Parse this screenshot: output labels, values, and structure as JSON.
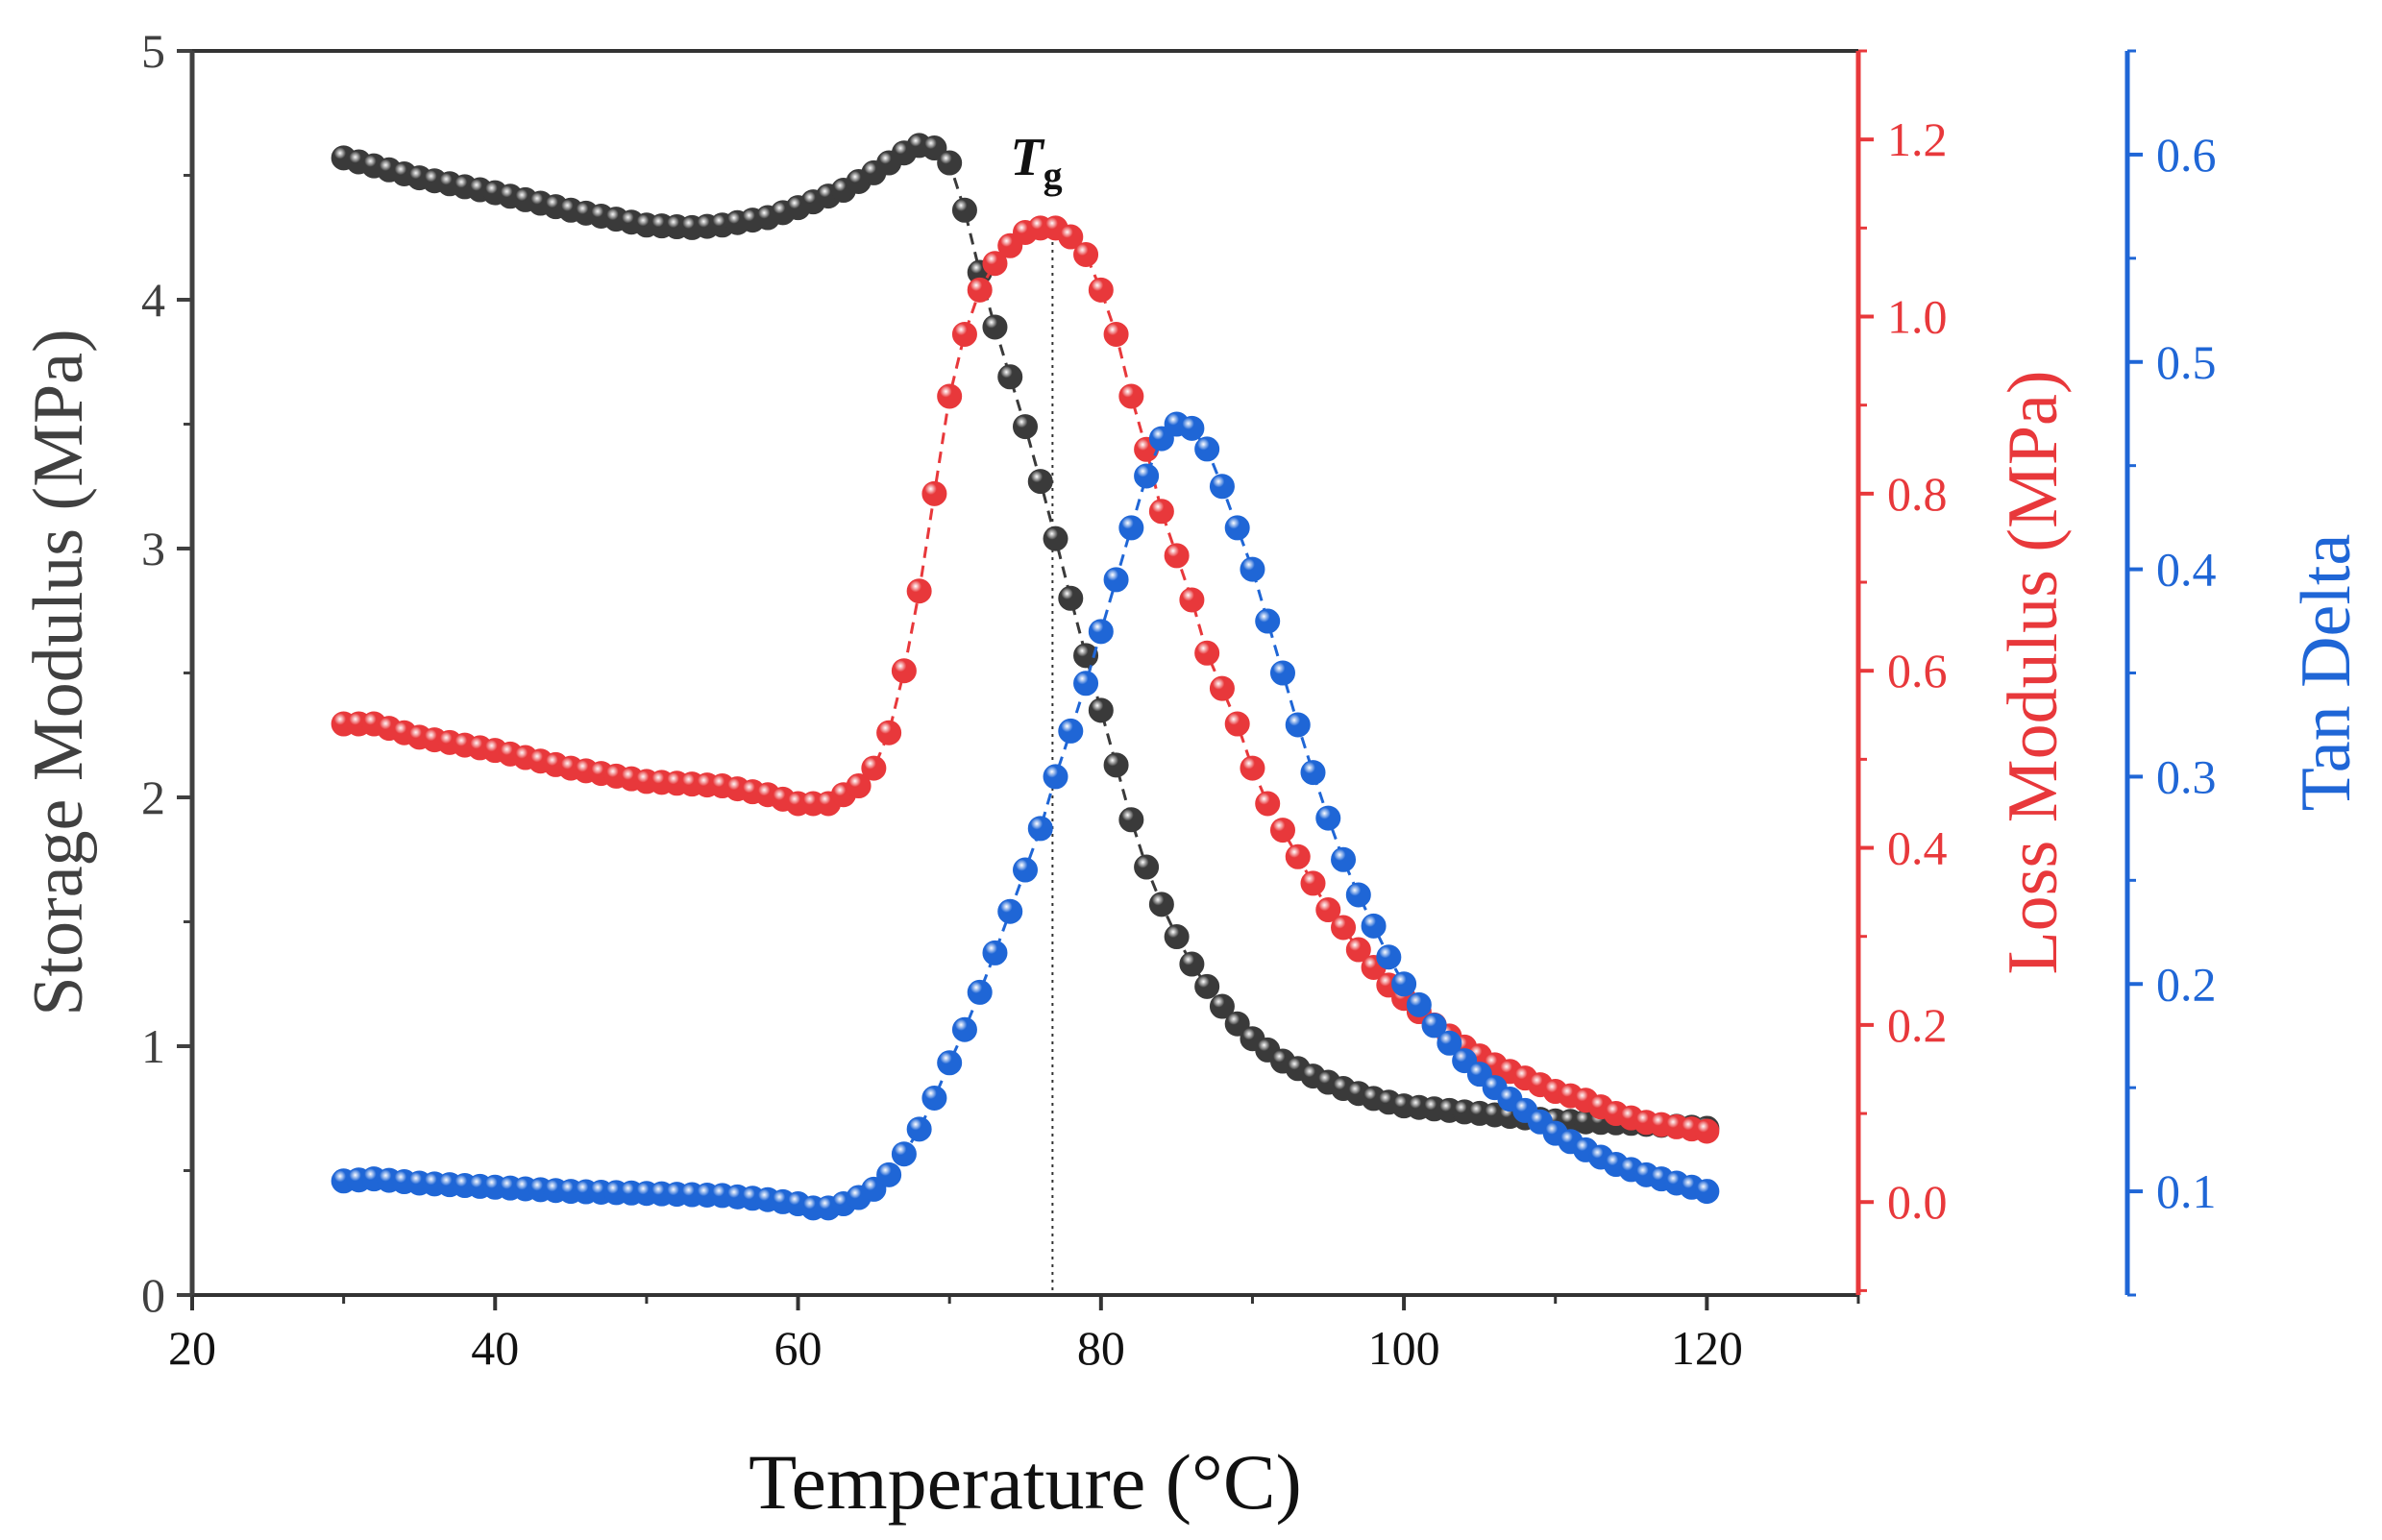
{
  "chart_data": {
    "type": "scatter",
    "xlabel": "Temperature (°C)",
    "x_axis": {
      "min": 20,
      "max": 130,
      "ticks": [
        20,
        40,
        60,
        80,
        100,
        120
      ]
    },
    "left_axis": {
      "label": "Storage Modulus (MPa)",
      "min": 0,
      "max": 5,
      "ticks": [
        0,
        1,
        2,
        3,
        4,
        5
      ],
      "color": "#404040"
    },
    "right_axis_1": {
      "label": "Loss Modulus (MPa)",
      "min": -0.105,
      "max": 1.3,
      "ticks": [
        "0.0",
        "0.2",
        "0.4",
        "0.6",
        "0.8",
        "1.0",
        "1.2"
      ],
      "color": "#e8383b"
    },
    "right_axis_2": {
      "label": "Tan Delta",
      "min": 0.05,
      "max": 0.65,
      "ticks": [
        "0.1",
        "0.2",
        "0.3",
        "0.4",
        "0.5",
        "0.6"
      ],
      "color": "#1f66d6"
    },
    "annotation": {
      "text": "T",
      "subscript": "g",
      "x": 76.8
    },
    "series": [
      {
        "axis": "left",
        "color": "#3a3a3a",
        "points": [
          [
            30,
            4.57
          ],
          [
            35,
            4.49
          ],
          [
            40,
            4.43
          ],
          [
            45,
            4.36
          ],
          [
            50,
            4.3
          ],
          [
            53,
            4.29
          ],
          [
            55,
            4.3
          ],
          [
            58,
            4.33
          ],
          [
            60,
            4.37
          ],
          [
            63,
            4.44
          ],
          [
            65,
            4.51
          ],
          [
            67,
            4.59
          ],
          [
            68,
            4.62
          ],
          [
            69,
            4.61
          ],
          [
            70,
            4.55
          ],
          [
            71,
            4.36
          ],
          [
            72,
            4.11
          ],
          [
            73,
            3.89
          ],
          [
            74,
            3.69
          ],
          [
            75,
            3.49
          ],
          [
            76,
            3.27
          ],
          [
            77,
            3.04
          ],
          [
            78,
            2.8
          ],
          [
            79,
            2.57
          ],
          [
            80,
            2.35
          ],
          [
            81,
            2.13
          ],
          [
            82,
            1.91
          ],
          [
            83,
            1.72
          ],
          [
            84,
            1.57
          ],
          [
            85,
            1.44
          ],
          [
            86,
            1.33
          ],
          [
            87,
            1.24
          ],
          [
            88,
            1.16
          ],
          [
            89,
            1.09
          ],
          [
            90,
            1.03
          ],
          [
            92,
            0.94
          ],
          [
            94,
            0.88
          ],
          [
            96,
            0.83
          ],
          [
            98,
            0.79
          ],
          [
            100,
            0.76
          ],
          [
            105,
            0.73
          ],
          [
            110,
            0.7
          ],
          [
            115,
            0.69
          ],
          [
            120,
            0.67
          ]
        ]
      },
      {
        "axis": "right1",
        "color": "#e8383b",
        "points": [
          [
            30,
            0.54
          ],
          [
            32,
            0.54
          ],
          [
            35,
            0.525
          ],
          [
            40,
            0.51
          ],
          [
            45,
            0.49
          ],
          [
            50,
            0.475
          ],
          [
            55,
            0.47
          ],
          [
            58,
            0.46
          ],
          [
            60,
            0.45
          ],
          [
            62,
            0.45
          ],
          [
            63,
            0.46
          ],
          [
            64,
            0.47
          ],
          [
            65,
            0.49
          ],
          [
            66,
            0.53
          ],
          [
            67,
            0.6
          ],
          [
            68,
            0.69
          ],
          [
            69,
            0.8
          ],
          [
            70,
            0.91
          ],
          [
            71,
            0.98
          ],
          [
            72,
            1.03
          ],
          [
            73,
            1.06
          ],
          [
            74,
            1.08
          ],
          [
            75,
            1.095
          ],
          [
            76,
            1.1
          ],
          [
            77,
            1.1
          ],
          [
            78,
            1.09
          ],
          [
            79,
            1.07
          ],
          [
            80,
            1.03
          ],
          [
            81,
            0.98
          ],
          [
            82,
            0.91
          ],
          [
            83,
            0.85
          ],
          [
            84,
            0.78
          ],
          [
            85,
            0.73
          ],
          [
            86,
            0.68
          ],
          [
            87,
            0.62
          ],
          [
            88,
            0.58
          ],
          [
            89,
            0.54
          ],
          [
            90,
            0.49
          ],
          [
            91,
            0.45
          ],
          [
            92,
            0.42
          ],
          [
            93,
            0.39
          ],
          [
            94,
            0.36
          ],
          [
            95,
            0.33
          ],
          [
            96,
            0.31
          ],
          [
            97,
            0.285
          ],
          [
            98,
            0.265
          ],
          [
            99,
            0.245
          ],
          [
            100,
            0.23
          ],
          [
            102,
            0.2
          ],
          [
            104,
            0.175
          ],
          [
            106,
            0.155
          ],
          [
            108,
            0.14
          ],
          [
            110,
            0.125
          ],
          [
            112,
            0.115
          ],
          [
            114,
            0.1
          ],
          [
            116,
            0.09
          ],
          [
            118,
            0.085
          ],
          [
            120,
            0.08
          ]
        ]
      },
      {
        "axis": "right2",
        "color": "#1f66d6",
        "points": [
          [
            30,
            0.105
          ],
          [
            32,
            0.106
          ],
          [
            35,
            0.104
          ],
          [
            40,
            0.102
          ],
          [
            45,
            0.1
          ],
          [
            50,
            0.099
          ],
          [
            55,
            0.098
          ],
          [
            58,
            0.096
          ],
          [
            60,
            0.094
          ],
          [
            61,
            0.092
          ],
          [
            62,
            0.092
          ],
          [
            63,
            0.094
          ],
          [
            64,
            0.097
          ],
          [
            65,
            0.101
          ],
          [
            66,
            0.108
          ],
          [
            67,
            0.118
          ],
          [
            68,
            0.13
          ],
          [
            69,
            0.145
          ],
          [
            70,
            0.162
          ],
          [
            71,
            0.178
          ],
          [
            72,
            0.196
          ],
          [
            73,
            0.215
          ],
          [
            74,
            0.235
          ],
          [
            75,
            0.255
          ],
          [
            76,
            0.275
          ],
          [
            77,
            0.3
          ],
          [
            78,
            0.322
          ],
          [
            79,
            0.345
          ],
          [
            80,
            0.37
          ],
          [
            81,
            0.395
          ],
          [
            82,
            0.42
          ],
          [
            83,
            0.445
          ],
          [
            84,
            0.463
          ],
          [
            85,
            0.47
          ],
          [
            86,
            0.468
          ],
          [
            87,
            0.458
          ],
          [
            88,
            0.44
          ],
          [
            89,
            0.42
          ],
          [
            90,
            0.4
          ],
          [
            91,
            0.375
          ],
          [
            92,
            0.35
          ],
          [
            93,
            0.325
          ],
          [
            94,
            0.302
          ],
          [
            95,
            0.28
          ],
          [
            96,
            0.26
          ],
          [
            97,
            0.243
          ],
          [
            98,
            0.228
          ],
          [
            99,
            0.213
          ],
          [
            100,
            0.2
          ],
          [
            102,
            0.18
          ],
          [
            104,
            0.163
          ],
          [
            106,
            0.15
          ],
          [
            108,
            0.139
          ],
          [
            110,
            0.128
          ],
          [
            112,
            0.12
          ],
          [
            114,
            0.113
          ],
          [
            116,
            0.108
          ],
          [
            118,
            0.104
          ],
          [
            120,
            0.1
          ]
        ]
      }
    ]
  }
}
